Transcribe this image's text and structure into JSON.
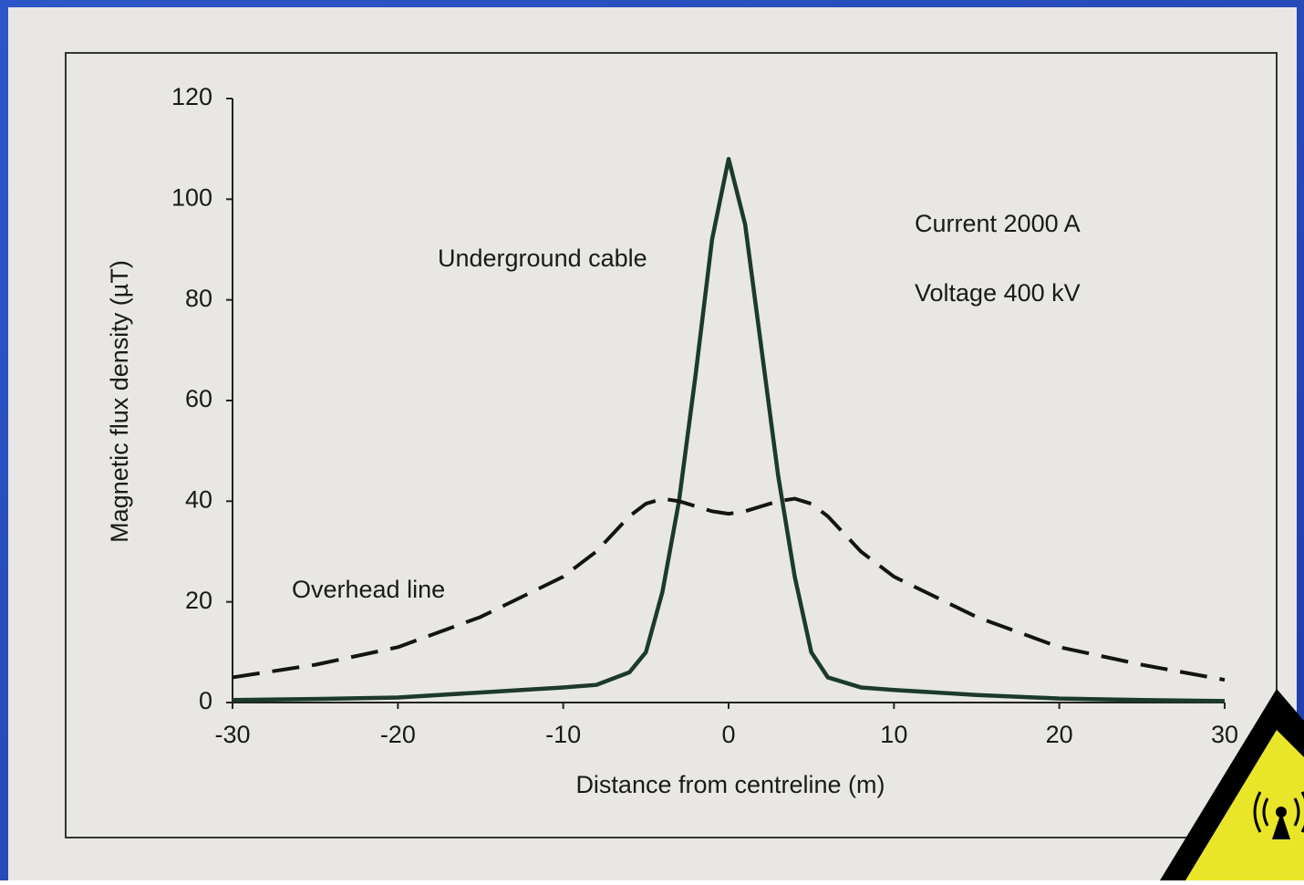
{
  "chart_data": {
    "type": "line",
    "x_label": "Distance from centreline (m)",
    "y_label": "Magnetic flux density (µT)",
    "x": [
      -30,
      -25,
      -20,
      -15,
      -10,
      -8,
      -6,
      -5,
      -4,
      -3,
      -2,
      -1,
      0,
      1,
      2,
      3,
      4,
      5,
      6,
      8,
      10,
      15,
      20,
      25,
      30
    ],
    "series": [
      {
        "name": "Underground cable",
        "color": "#1c3a2c",
        "style": "solid",
        "values": [
          0.5,
          0.7,
          1,
          2,
          3,
          3.5,
          6,
          10,
          22,
          40,
          65,
          92,
          108,
          95,
          70,
          45,
          25,
          10,
          5,
          3,
          2.5,
          1.5,
          0.8,
          0.5,
          0.3
        ]
      },
      {
        "name": "Overhead line",
        "color": "#141414",
        "style": "dashed",
        "values": [
          5,
          7.5,
          11,
          17,
          25,
          30,
          37,
          39.5,
          40.5,
          40,
          39,
          38,
          37.5,
          38,
          39,
          40,
          40.5,
          39.5,
          37,
          30,
          25,
          17,
          11,
          7.5,
          4.5
        ]
      }
    ],
    "annotations": [
      "Current 2000 A",
      "Voltage 400 kV"
    ],
    "xlim": [
      -30,
      30
    ],
    "xticks": [
      -30,
      -20,
      -10,
      0,
      10,
      20,
      30
    ],
    "ylim": [
      0,
      120
    ],
    "yticks": [
      0,
      20,
      40,
      60,
      80,
      100,
      120
    ],
    "grid": false
  }
}
